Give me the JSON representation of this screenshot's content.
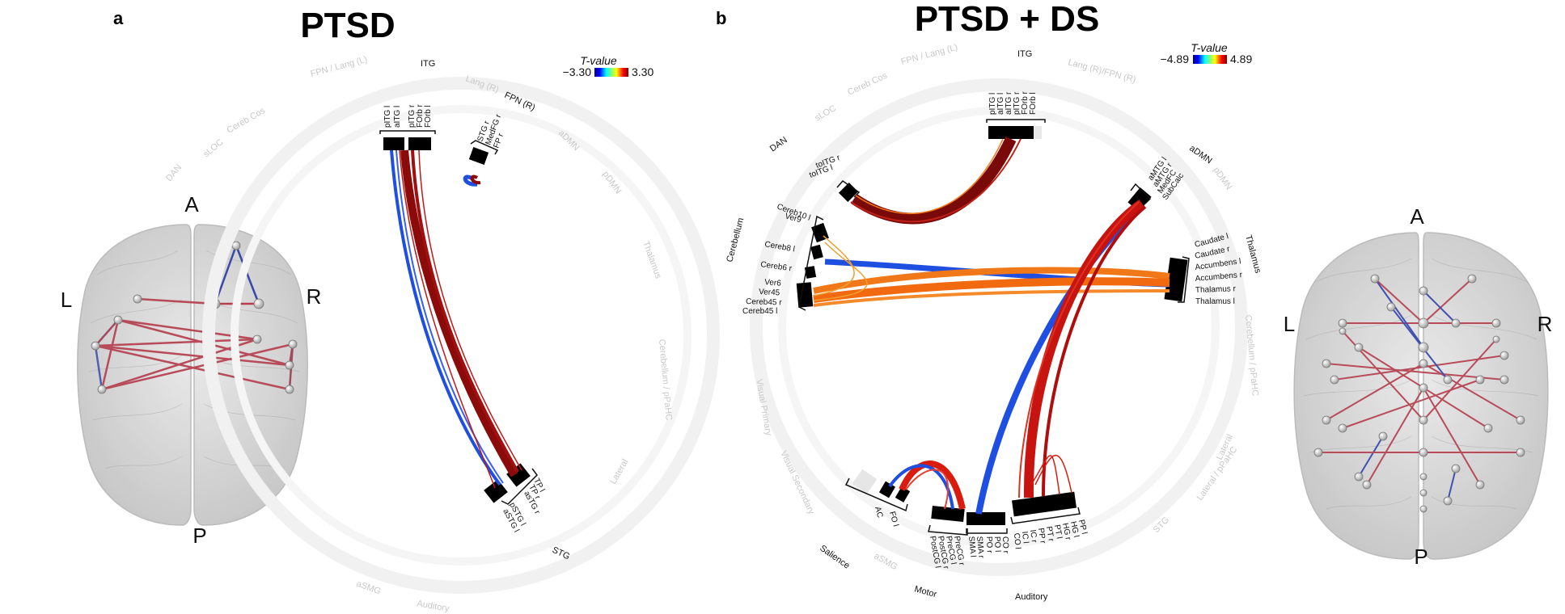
{
  "panels": [
    {
      "letter": "a",
      "title": "PTSD",
      "colorbar": {
        "title": "T-value",
        "min_label": "−3.30",
        "max_label": "3.30"
      },
      "networks": {
        "itg": "ITG",
        "fpn_r": "FPN (R)",
        "stg": "STG"
      },
      "faint_networks": [
        "FPN / Lang (L)",
        "Lang (R)",
        "Cereb Cos",
        "sLOC",
        "DAN",
        "aDMN",
        "pDMN",
        "Thalamus",
        "Cerebellum / pPaHC",
        "Lateral",
        "aSMG",
        "Auditory"
      ],
      "roi_groups": [
        {
          "name": "itg",
          "labels": [
            "pITG l",
            "aITG l",
            "pITG r",
            "FOrb r",
            "FOrb l"
          ]
        },
        {
          "name": "fpn",
          "labels": [
            "STG r",
            "MedFG r",
            "FP r"
          ]
        },
        {
          "name": "stg",
          "labels": [
            "TP l",
            "TP r",
            "asTG r",
            "pSTG l",
            "aSTG l"
          ]
        }
      ],
      "brain": {
        "anterior": "A",
        "posterior": "P",
        "left": "L",
        "right": "R"
      }
    },
    {
      "letter": "b",
      "title": "PTSD + DS",
      "colorbar": {
        "title": "T-value",
        "min_label": "−4.89",
        "max_label": "4.89"
      },
      "networks": {
        "itg": "ITG",
        "admn": "aDMN",
        "thalamus": "Thalamus",
        "dan": "DAN",
        "cerebellum": "Cerebellum",
        "salience": "Salience",
        "motor": "Motor",
        "auditory": "Auditory"
      },
      "faint_networks": [
        "FPN / Lang (L)",
        "Lang (R)/FPN (R)",
        "sLOC",
        "Cereb Cos",
        "pDMN",
        "Cerebellum / pPaHC",
        "Visual Primary",
        "Visual Secondary",
        "Lateral",
        "STG",
        "aSMG",
        "Lateral / pPaHC"
      ],
      "roi_groups": [
        {
          "name": "itg",
          "labels": [
            "pITG l",
            "aITG l",
            "aITG r",
            "pITG r",
            "FOrb r",
            "FOrb l"
          ]
        },
        {
          "name": "dan",
          "labels": [
            "toITG r",
            "toITG l"
          ]
        },
        {
          "name": "cereb_top",
          "labels": [
            "Cereb10 l",
            "Ver9"
          ]
        },
        {
          "name": "cereb_mid",
          "labels": [
            "Cereb8 l",
            "Cereb6 r"
          ]
        },
        {
          "name": "cereb_bot",
          "labels": [
            "Ver6",
            "Ver45",
            "Cereb45 r",
            "Cereb45 l"
          ]
        },
        {
          "name": "admn",
          "labels": [
            "aMTG l",
            "aMTG r",
            "MedFC",
            "SubCalc"
          ]
        },
        {
          "name": "thalamus",
          "labels": [
            "Caudate l",
            "Caudate r",
            "Accumbens l",
            "Accumbens r",
            "Thalamus r",
            "Thalamus l"
          ]
        },
        {
          "name": "salience",
          "labels": [
            "AC",
            "FO l"
          ]
        },
        {
          "name": "motor",
          "labels": [
            "PostCG l",
            "PostCG r",
            "PreCG l",
            "PreCG r"
          ]
        },
        {
          "name": "sma",
          "labels": [
            "SMA l",
            "SMA r"
          ]
        },
        {
          "name": "auditory",
          "labels": [
            "PO r",
            "PO l",
            "CO r",
            "CO l",
            "IC l",
            "IC r",
            "PP r",
            "PT r",
            "PT l",
            "HG r",
            "HG l",
            "PP l"
          ]
        }
      ],
      "brain": {
        "anterior": "A",
        "posterior": "P",
        "left": "L",
        "right": "R"
      }
    }
  ],
  "colors": {
    "negative": "#1f4fe0",
    "positive_dark": "#8b0a0a",
    "positive": "#d81c10",
    "orange": "#f07818",
    "brain_fill": "#d4d4d4",
    "ring": "#f0f0f0",
    "node": "#000000"
  },
  "icons": [
    "brain-glass-icon"
  ]
}
